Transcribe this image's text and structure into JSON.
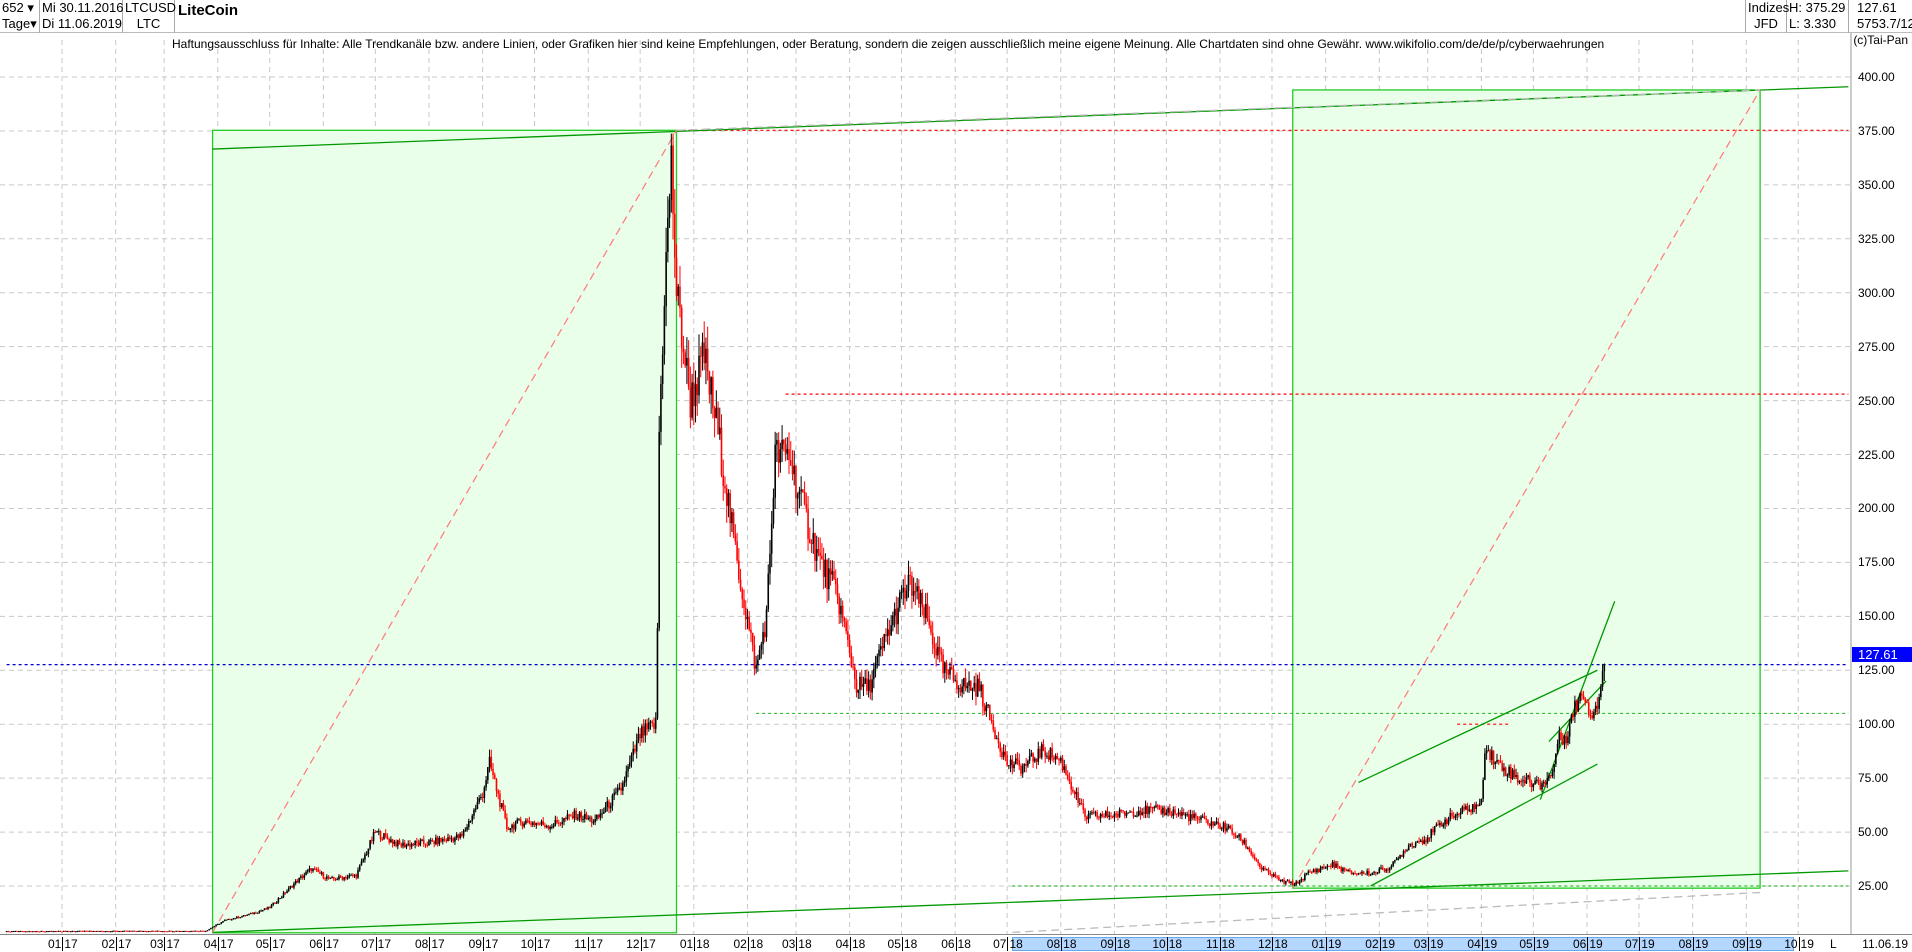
{
  "header": {
    "bars": "652",
    "period": "Tage",
    "from": "Mi 30.11.2016",
    "to": "Di 11.06.2019",
    "symbol": "LTCUSD",
    "short": "LTC",
    "title": "LiteCoin",
    "group": "Indizes",
    "source": "JFD",
    "high": "H: 375.29",
    "low": "L: 3.330",
    "last": "127.61",
    "extra": "5753.7/12",
    "copyright": "(c)Tai-Pan"
  },
  "disclaimer": "Haftungsausschluss für Inhalte: Alle Trendkanäle bzw. andere Linien, oder Grafiken hier sind keine Empfehlungen, oder Beratung, sondern die zeigen ausschließlich meine eigene Meinung. Alle Chartdaten sind ohne Gewähr.  www.wikifolio.com/de/de/p/cyberwaehrungen",
  "chart_data": {
    "type": "candlestick",
    "start": "2016-11-30",
    "end": "2019-06-11",
    "ylim": [
      0,
      410
    ],
    "yticks": [
      "25.00",
      "50.00",
      "75.00",
      "100.00",
      "125.00",
      "150.00",
      "175.00",
      "200.00",
      "225.00",
      "250.00",
      "275.00",
      "300.00",
      "325.00",
      "350.00",
      "375.00",
      "400.00"
    ],
    "xticks": [
      "01 17",
      "02 17",
      "03 17",
      "04 17",
      "05 17",
      "06 17",
      "07 17",
      "08 17",
      "09 17",
      "10 17",
      "11 17",
      "12 17",
      "01 18",
      "02 18",
      "03 18",
      "04 18",
      "05 18",
      "06 18",
      "07 18",
      "08 18",
      "09 18",
      "10 18",
      "11 18",
      "12 18",
      "01 19",
      "02 19",
      "03 19",
      "04 19",
      "05 19",
      "06 19",
      "07 19",
      "08 19",
      "09 19",
      "10 19"
    ],
    "axis_end_marker": "L",
    "axis_end_date": "11.06.19",
    "last_price": 127.61,
    "last_label": "127.61",
    "grid": true,
    "up_color": "#000000",
    "down_color": "#ff0000",
    "close_keypoints": [
      [
        "2016-11-30",
        4
      ],
      [
        "2017-03-25",
        4.2
      ],
      [
        "2017-04-05",
        9
      ],
      [
        "2017-04-20",
        12
      ],
      [
        "2017-05-01",
        15
      ],
      [
        "2017-05-15",
        26
      ],
      [
        "2017-05-25",
        33
      ],
      [
        "2017-06-05",
        28
      ],
      [
        "2017-06-20",
        30
      ],
      [
        "2017-07-01",
        50
      ],
      [
        "2017-07-15",
        44
      ],
      [
        "2017-08-01",
        45
      ],
      [
        "2017-08-20",
        48
      ],
      [
        "2017-09-01",
        68
      ],
      [
        "2017-09-05",
        82
      ],
      [
        "2017-09-15",
        52
      ],
      [
        "2017-09-25",
        55
      ],
      [
        "2017-10-10",
        53
      ],
      [
        "2017-10-25",
        58
      ],
      [
        "2017-11-05",
        55
      ],
      [
        "2017-11-20",
        70
      ],
      [
        "2017-12-01",
        95
      ],
      [
        "2017-12-10",
        100
      ],
      [
        "2017-12-11",
        145
      ],
      [
        "2017-12-12",
        235
      ],
      [
        "2017-12-15",
        300
      ],
      [
        "2017-12-19",
        360
      ],
      [
        "2017-12-22",
        300
      ],
      [
        "2017-12-30",
        250
      ],
      [
        "2018-01-07",
        270
      ],
      [
        "2018-01-15",
        235
      ],
      [
        "2018-01-25",
        180
      ],
      [
        "2018-02-06",
        125
      ],
      [
        "2018-02-12",
        150
      ],
      [
        "2018-02-17",
        225
      ],
      [
        "2018-02-25",
        225
      ],
      [
        "2018-03-05",
        200
      ],
      [
        "2018-03-15",
        175
      ],
      [
        "2018-03-25",
        160
      ],
      [
        "2018-04-05",
        118
      ],
      [
        "2018-04-12",
        117
      ],
      [
        "2018-04-22",
        140
      ],
      [
        "2018-05-01",
        158
      ],
      [
        "2018-05-06",
        165
      ],
      [
        "2018-05-15",
        150
      ],
      [
        "2018-05-25",
        125
      ],
      [
        "2018-06-05",
        118
      ],
      [
        "2018-06-15",
        117
      ],
      [
        "2018-06-20",
        105
      ],
      [
        "2018-07-01",
        82
      ],
      [
        "2018-07-10",
        80
      ],
      [
        "2018-07-22",
        88
      ],
      [
        "2018-08-01",
        83
      ],
      [
        "2018-08-15",
        57
      ],
      [
        "2018-09-01",
        58
      ],
      [
        "2018-09-15",
        60
      ],
      [
        "2018-10-01",
        60
      ],
      [
        "2018-10-15",
        57
      ],
      [
        "2018-11-05",
        52
      ],
      [
        "2018-11-15",
        45
      ],
      [
        "2018-11-25",
        33
      ],
      [
        "2018-12-07",
        27
      ],
      [
        "2018-12-15",
        26
      ],
      [
        "2018-12-22",
        31
      ],
      [
        "2019-01-05",
        35
      ],
      [
        "2019-01-15",
        31
      ],
      [
        "2019-01-28",
        31
      ],
      [
        "2019-02-08",
        34
      ],
      [
        "2019-02-18",
        44
      ],
      [
        "2019-02-28",
        47
      ],
      [
        "2019-03-10",
        55
      ],
      [
        "2019-03-22",
        60
      ],
      [
        "2019-04-01",
        63
      ],
      [
        "2019-04-03",
        90
      ],
      [
        "2019-04-10",
        82
      ],
      [
        "2019-04-22",
        75
      ],
      [
        "2019-05-05",
        72
      ],
      [
        "2019-05-12",
        77
      ],
      [
        "2019-05-15",
        92
      ],
      [
        "2019-05-20",
        95
      ],
      [
        "2019-05-26",
        110
      ],
      [
        "2019-05-30",
        115
      ],
      [
        "2019-06-03",
        105
      ],
      [
        "2019-06-07",
        110
      ],
      [
        "2019-06-11",
        127.61
      ]
    ],
    "annotations": {
      "boxes": [
        {
          "from": "2017-03-29",
          "to": "2017-12-22",
          "low": 3.3,
          "high": 375.3,
          "fill": "#eaffea",
          "stroke": "#22cc22"
        },
        {
          "from": "2018-12-13",
          "to": "2019-09-09",
          "low": 24,
          "high": 394,
          "fill": "#eaffea",
          "stroke": "#22cc22"
        }
      ],
      "lines": [
        {
          "from": [
            "2017-03-29",
            366.6
          ],
          "to": [
            "2019-10-30",
            395.5
          ],
          "color": "#009900",
          "style": "solid"
        },
        {
          "from": [
            "2017-03-29",
            3.5
          ],
          "to": [
            "2019-10-30",
            32
          ],
          "color": "#009900",
          "style": "solid"
        },
        {
          "from": [
            "2017-03-29",
            3.5
          ],
          "to": [
            "2017-12-22",
            375.3
          ],
          "color": "#ff8080",
          "style": "dashed"
        },
        {
          "from": [
            "2018-12-13",
            24
          ],
          "to": [
            "2019-09-09",
            394
          ],
          "color": "#ff8080",
          "style": "dashed"
        },
        {
          "from": [
            "2017-12-22",
            375.3
          ],
          "to": [
            "2019-09-09",
            394
          ],
          "color": "#bbbbbb",
          "style": "dashed"
        },
        {
          "from": [
            "2018-07-04",
            3.5
          ],
          "to": [
            "2019-09-09",
            22
          ],
          "color": "#bbbbbb",
          "style": "dashed"
        },
        {
          "from": [
            "2019-01-20",
            73
          ],
          "to": [
            "2019-06-07",
            125
          ],
          "color": "#009900",
          "style": "solid"
        },
        {
          "from": [
            "2019-01-27",
            25
          ],
          "to": [
            "2019-06-07",
            81.5
          ],
          "color": "#009900",
          "style": "solid"
        },
        {
          "from": [
            "2019-05-05",
            65
          ],
          "to": [
            "2019-06-17",
            157
          ],
          "color": "#009900",
          "style": "solid"
        },
        {
          "from": [
            "2019-05-10",
            92
          ],
          "to": [
            "2019-06-12",
            120
          ],
          "color": "#009900",
          "style": "solid"
        }
      ],
      "hlines": [
        {
          "from": "2017-12-22",
          "to": "2019-10-30",
          "price": 375.3,
          "color": "#ff0000",
          "style": "dotted"
        },
        {
          "from": "2018-02-23",
          "to": "2019-10-30",
          "price": 253,
          "color": "#ff0000",
          "style": "dotted"
        },
        {
          "from": "2018-02-06",
          "to": "2019-10-30",
          "price": 105,
          "color": "#33bb33",
          "style": "dotted"
        },
        {
          "from": "2018-07-04",
          "to": "2019-10-30",
          "price": 25,
          "color": "#33bb33",
          "style": "dotted"
        },
        {
          "from": "2019-03-18",
          "to": "2019-04-18",
          "price": 100,
          "color": "#ff0000",
          "style": "dotted"
        },
        {
          "from": "2016-11-30",
          "to": "2019-10-30",
          "price": 127.61,
          "color": "#0000cc",
          "style": "dotted"
        }
      ]
    }
  }
}
